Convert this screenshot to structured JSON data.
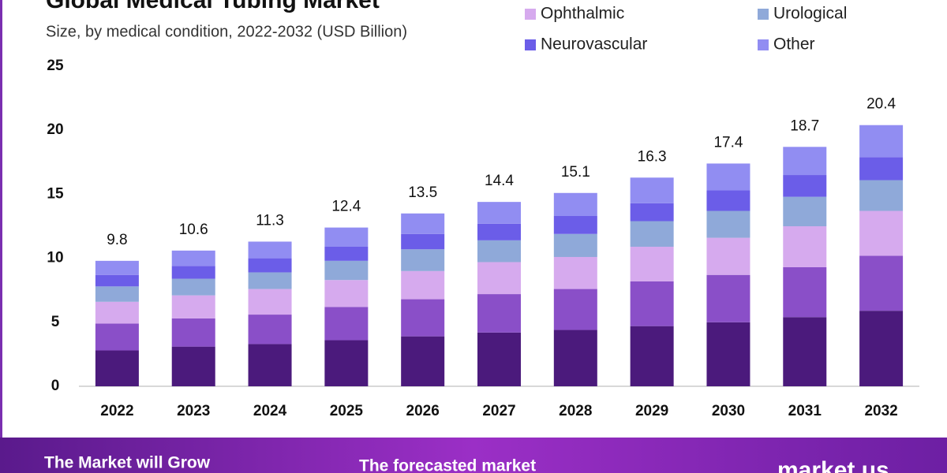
{
  "chart_data": {
    "type": "stacked-bar",
    "title": "Global Medical Tubing Market",
    "subtitle": "Size, by medical condition, 2022-2032 (USD Billion)",
    "categories": [
      "2022",
      "2023",
      "2024",
      "2025",
      "2026",
      "2027",
      "2028",
      "2029",
      "2030",
      "2031",
      "2032"
    ],
    "series": [
      {
        "color": "#4b1a7c",
        "values": [
          2.8,
          3.1,
          3.3,
          3.6,
          3.9,
          4.2,
          4.4,
          4.7,
          5.0,
          5.4,
          5.9
        ]
      },
      {
        "color": "#8a4fc8",
        "values": [
          2.1,
          2.2,
          2.3,
          2.6,
          2.9,
          3.0,
          3.2,
          3.5,
          3.7,
          3.9,
          4.3
        ]
      },
      {
        "name": "Ophthalmic",
        "color": "#d6aaee",
        "values": [
          1.7,
          1.8,
          2.0,
          2.1,
          2.2,
          2.5,
          2.5,
          2.7,
          2.9,
          3.2,
          3.5
        ]
      },
      {
        "name": "Urological",
        "color": "#8fa9d9",
        "values": [
          1.2,
          1.3,
          1.3,
          1.5,
          1.7,
          1.7,
          1.8,
          2.0,
          2.1,
          2.3,
          2.4
        ]
      },
      {
        "name": "Neurovascular",
        "color": "#6b5de8",
        "values": [
          0.9,
          1.0,
          1.1,
          1.1,
          1.2,
          1.3,
          1.4,
          1.4,
          1.6,
          1.7,
          1.8
        ]
      },
      {
        "name": "Other",
        "color": "#918df2",
        "values": [
          1.1,
          1.2,
          1.3,
          1.5,
          1.6,
          1.7,
          1.8,
          2.0,
          2.1,
          2.2,
          2.5
        ]
      }
    ],
    "totals": [
      9.8,
      10.6,
      11.3,
      12.4,
      13.5,
      14.4,
      15.1,
      16.3,
      17.4,
      18.7,
      20.4
    ],
    "ylim": [
      0,
      25
    ],
    "yticks": [
      0,
      5,
      10,
      15,
      20,
      25
    ],
    "grid": false
  },
  "footer": {
    "grow": "The Market will Grow",
    "forecast": "The forecasted market",
    "brand": "market.us"
  }
}
